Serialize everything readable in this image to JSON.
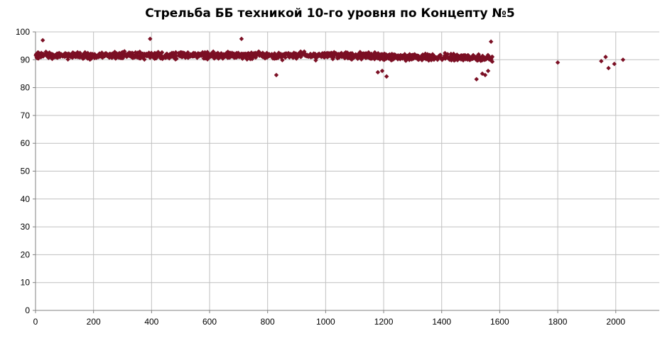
{
  "chart_data": {
    "type": "scatter",
    "title": "Стрельба ББ техникой 10-го уровня по Концепту №5",
    "xlabel": "",
    "ylabel": "",
    "xlim": [
      0,
      2150
    ],
    "ylim": [
      0,
      100
    ],
    "x_ticks": [
      0,
      200,
      400,
      600,
      800,
      1000,
      1200,
      1400,
      1600,
      1800,
      2000
    ],
    "y_ticks": [
      0,
      10,
      20,
      30,
      40,
      50,
      60,
      70,
      80,
      90,
      100
    ],
    "grid": true,
    "legend": "none",
    "marker": "diamond",
    "series": [
      {
        "color": "#7b0f24",
        "dense_band": {
          "x_range": [
            1,
            1575
          ],
          "n_points": 1500,
          "center_y": 91,
          "spread_y": [
            87,
            96
          ]
        },
        "points": [
          {
            "x": 25,
            "y": 97
          },
          {
            "x": 395,
            "y": 97.5
          },
          {
            "x": 710,
            "y": 97.5
          },
          {
            "x": 830,
            "y": 84.5
          },
          {
            "x": 1180,
            "y": 85.5
          },
          {
            "x": 1195,
            "y": 86
          },
          {
            "x": 1210,
            "y": 84
          },
          {
            "x": 1520,
            "y": 83
          },
          {
            "x": 1540,
            "y": 85
          },
          {
            "x": 1550,
            "y": 84.5
          },
          {
            "x": 1560,
            "y": 86
          },
          {
            "x": 1570,
            "y": 96.5
          },
          {
            "x": 1800,
            "y": 89
          },
          {
            "x": 1950,
            "y": 89.5
          },
          {
            "x": 1965,
            "y": 91
          },
          {
            "x": 1975,
            "y": 87
          },
          {
            "x": 1995,
            "y": 88.5
          },
          {
            "x": 2025,
            "y": 90
          }
        ]
      }
    ]
  }
}
